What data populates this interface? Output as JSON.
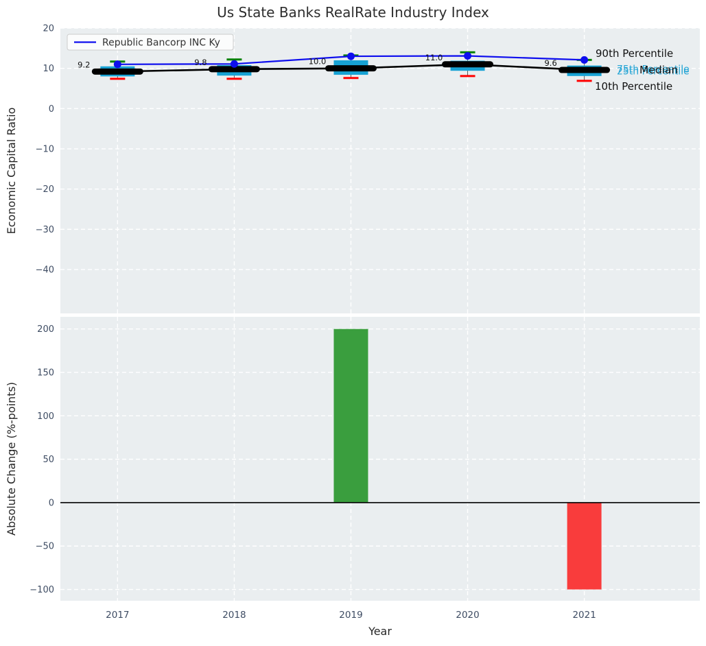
{
  "title": "Us State Banks RealRate Industry Index",
  "colors": {
    "axes_background": "#EAEEF0",
    "grid": "#FFFFFF",
    "tick_label": "#3E4C63",
    "axis_label": "#262626",
    "company_line": "#0E0EEE",
    "median_line": "#000000",
    "box_fill": "#17A2D4",
    "p90_cap": "#008000",
    "p10_cap": "#FF0000",
    "bar_positive": "#3A9E3E",
    "bar_negative": "#F93C3C",
    "percentile_text_cyan": "#25A5D5"
  },
  "chart_data": [
    {
      "type": "boxplot",
      "ylabel": "Economic Capital Ratio",
      "x": [
        2017,
        2018,
        2019,
        2020,
        2021
      ],
      "ylim": [
        -50.9,
        20
      ],
      "xlim": [
        2016.51,
        2021.99
      ],
      "grid": true,
      "yticks": [
        "20",
        "10",
        "0",
        "−10",
        "−20",
        "−30",
        "−40"
      ],
      "ytick_values": [
        20,
        10,
        0,
        -10,
        -20,
        -30,
        -40
      ],
      "legend": {
        "position": "upper left",
        "entries": [
          {
            "label": "Republic Bancorp INC Ky",
            "color": "#0E0EEE"
          }
        ]
      },
      "series": [
        {
          "name": "Republic Bancorp INC Ky",
          "type": "line",
          "marker": "circle",
          "values": [
            11.0,
            11.1,
            13.0,
            13.1,
            12.1
          ]
        },
        {
          "name": "Median",
          "type": "line",
          "marker": "thick-dash",
          "values": [
            9.2,
            9.8,
            10.0,
            11.0,
            9.6
          ]
        }
      ],
      "point_labels": [
        "9.2",
        "9.8",
        "10.0",
        "11.0",
        "9.6"
      ],
      "boxplots": {
        "q1": [
          8.0,
          8.2,
          8.4,
          9.4,
          8.1
        ],
        "q3": [
          10.5,
          10.8,
          12.0,
          11.9,
          10.7
        ],
        "p90": [
          11.7,
          12.2,
          13.2,
          14.0,
          12.1
        ],
        "p10": [
          7.4,
          7.4,
          7.6,
          8.1,
          6.9
        ]
      },
      "annotations": [
        {
          "text": "90th Percentile",
          "color": "#111111"
        },
        {
          "text": "75th Percentile",
          "color": "#25A5D5"
        },
        {
          "text": "25th Percentile",
          "color": "#25A5D5"
        },
        {
          "text": "Median",
          "color": "#111111"
        },
        {
          "text": "10th Percentile",
          "color": "#111111"
        }
      ]
    },
    {
      "type": "bar",
      "ylabel": "Absolute Change (%-points)",
      "xlabel": "Year",
      "categories": [
        "2017",
        "2018",
        "2019",
        "2020",
        "2021"
      ],
      "values": [
        0,
        0,
        200,
        0,
        -100
      ],
      "ylim": [
        -113,
        214
      ],
      "grid": true,
      "zero_line": true,
      "yticks": [
        "200",
        "150",
        "100",
        "50",
        "0",
        "−50",
        "−100"
      ],
      "ytick_values": [
        200,
        150,
        100,
        50,
        0,
        -50,
        -100
      ]
    }
  ]
}
